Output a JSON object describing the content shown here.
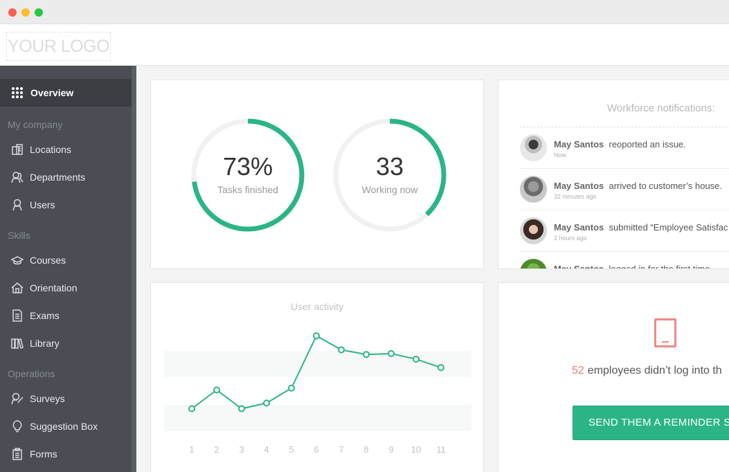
{
  "header": {
    "logo_text": "YOUR LOGO"
  },
  "sidebar": {
    "active": {
      "label": "Overview",
      "icon": "grid-icon"
    },
    "sections": [
      {
        "title": "My company",
        "items": [
          {
            "label": "Locations",
            "icon": "building-icon"
          },
          {
            "label": "Departments",
            "icon": "users-group-icon"
          },
          {
            "label": "Users",
            "icon": "user-icon"
          }
        ]
      },
      {
        "title": "Skills",
        "items": [
          {
            "label": "Courses",
            "icon": "graduation-cap-icon"
          },
          {
            "label": "Orientation",
            "icon": "home-icon"
          },
          {
            "label": "Exams",
            "icon": "document-icon"
          },
          {
            "label": "Library",
            "icon": "books-icon"
          }
        ]
      },
      {
        "title": "Operations",
        "items": [
          {
            "label": "Surveys",
            "icon": "survey-icon"
          },
          {
            "label": "Suggestion Box",
            "icon": "lightbulb-icon"
          },
          {
            "label": "Forms",
            "icon": "clipboard-icon"
          }
        ]
      }
    ]
  },
  "stats": {
    "tasks": {
      "value": "73%",
      "label": "Tasks finished",
      "fraction": 0.73
    },
    "working": {
      "value": "33",
      "label": "Working now",
      "fraction": 0.38
    },
    "accent_color": "#2bb587",
    "track_color": "#f1f1f1"
  },
  "notifications": {
    "title": "Workforce notifications:",
    "items": [
      {
        "name": "May Santos",
        "action": "reoported an issue.",
        "time": "Now"
      },
      {
        "name": "May Santos",
        "action": "arrived to customer’s house.",
        "time": "32 minutes ago"
      },
      {
        "name": "May Santos",
        "action": "submitted “Employee Satisfac",
        "time": "2 hours ago"
      },
      {
        "name": "May Santos",
        "action": "logged in for the first time.",
        "time": ""
      }
    ]
  },
  "activity": {
    "title": "User activity"
  },
  "chart_data": {
    "type": "line",
    "title": "User activity",
    "x": [
      1,
      2,
      3,
      4,
      5,
      6,
      7,
      8,
      9,
      10,
      11
    ],
    "series": [
      {
        "values": [
          3,
          5,
          3,
          3.6,
          5.2,
          10.8,
          9.3,
          8.8,
          8.9,
          8.3,
          7.4
        ]
      }
    ],
    "ylim": [
      0,
      12
    ],
    "grid": "alternating bands",
    "color": "#2bb587"
  },
  "reminder": {
    "count": "52",
    "text": "employees didn’t log into th",
    "button_label": "SEND THEM A REMINDER SM",
    "icon": "phone-icon"
  }
}
